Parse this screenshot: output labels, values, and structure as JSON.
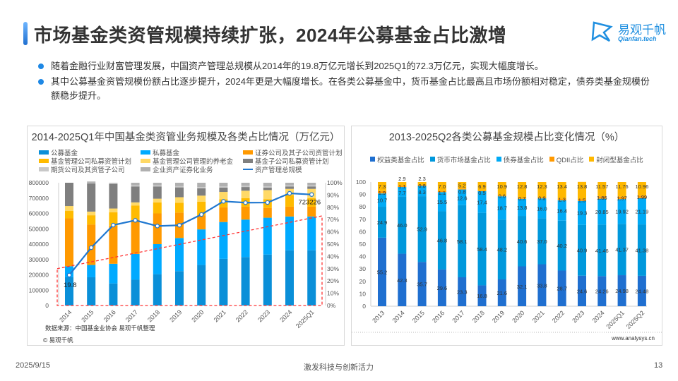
{
  "header": {
    "title": "市场基金类资管规模持续扩张，2024年公募基金占比激增",
    "logo_cn": "易观千帆",
    "logo_en": "Qianfan.tech"
  },
  "bullets": [
    "随着金融行业财富管理发展，中国资产管理总规模从2014年的19.8万亿元增长到2025Q1的72.3万亿元，实现大幅度增长。",
    "其中公募基金资管规模份额占比逐步提升，2024年更是大幅度增长。在各类公募基金中，货币基金占比最高且市场份额相对稳定，债券类基金规模份额稳步提升。"
  ],
  "left_panel": {
    "source": "数据来源：中国基金业协会 易观千帆整理",
    "copyright": "© 易观千帆"
  },
  "right_panel": {
    "source": "www.analysys.cn"
  },
  "footer": {
    "date": "2025/9/15",
    "slogan": "激发科技与创新活力",
    "page": "13"
  },
  "chart_data": [
    {
      "type": "bar",
      "stacked": true,
      "title": "2014-2025Q1年中国基金类资管业务规模及各类占比情况（万亿元）",
      "categories": [
        "2014",
        "2015",
        "2016",
        "2017",
        "2018",
        "2019",
        "2020",
        "2021",
        "2022",
        "2023",
        "2024",
        "2025Q1"
      ],
      "yleft_ticks": [
        "0",
        "100000",
        "200000",
        "300000",
        "400000",
        "500000",
        "600000",
        "700000",
        "800000"
      ],
      "ylim_left": [
        0,
        800000
      ],
      "yright_ticks": [
        "0%",
        "10%",
        "20%",
        "30%",
        "40%",
        "50%",
        "60%",
        "70%",
        "80%",
        "90%",
        "100%"
      ],
      "ylim_right": [
        0,
        100
      ],
      "series": [
        {
          "name": "公募基金",
          "color": "#0a8fd8",
          "values": [
            23,
            23,
            18,
            21,
            25.5,
            28,
            33,
            38,
            39.5,
            41.5,
            45,
            45
          ]
        },
        {
          "name": "私募基金",
          "color": "#00aaff",
          "values": [
            9,
            10,
            16,
            21,
            24.5,
            27,
            29,
            30,
            30.5,
            30,
            27.5,
            27.5
          ]
        },
        {
          "name": "证券公司及其子公司资管计划",
          "color": "#ff9900",
          "values": [
            39,
            33,
            31,
            28,
            25,
            20.7,
            11.5,
            12,
            10.5,
            8,
            8,
            8
          ]
        },
        {
          "name": "基金管理公司私募资管计划",
          "color": "#ffbb00",
          "values": [
            6,
            7.5,
            11,
            11.5,
            9,
            8,
            11,
            6.5,
            7,
            7,
            9.5,
            7
          ]
        },
        {
          "name": "基金管理公司管理的养老金",
          "color": "#ffd966",
          "values": [
            4,
            3,
            3,
            2.5,
            3,
            4.5,
            5,
            6,
            6,
            7.5,
            5,
            7.5
          ]
        },
        {
          "name": "基金子公司私募资管计划",
          "color": "#7f7f7f",
          "values": [
            19,
            23,
            20,
            13,
            10,
            8,
            6,
            3.5,
            3,
            2,
            2,
            2
          ]
        },
        {
          "name": "期货公司及其资管子公司",
          "color": "#c8c8c8",
          "values": [
            0,
            0.5,
            0.5,
            1,
            1,
            1,
            1,
            1,
            1,
            1,
            1,
            1
          ]
        },
        {
          "name": "企业资产证券化业务",
          "color": "#b0b0b0",
          "values": [
            0,
            1,
            0.5,
            2,
            2,
            2.8,
            3.5,
            3,
            2.5,
            3,
            2,
            2
          ]
        }
      ],
      "line": {
        "name": "资产管理总规模",
        "color": "#1f77d0",
        "values": [
          198000,
          377000,
          524000,
          555000,
          518000,
          523000,
          593000,
          679000,
          670000,
          671000,
          731000,
          723226
        ]
      },
      "annotations": [
        "19.8",
        "723226"
      ]
    },
    {
      "type": "bar",
      "stacked": true,
      "title": "2013-2025Q2各类公募基金规模占比变化情况（%）",
      "categories": [
        "2013",
        "2014",
        "2015",
        "2016",
        "2017",
        "2018",
        "2019",
        "2020",
        "2021",
        "2022",
        "2023",
        "2024",
        "2025Q1",
        "2025Q2"
      ],
      "y_ticks": [
        "0",
        "10",
        "20",
        "30",
        "40",
        "50",
        "60",
        "70",
        "80",
        "90",
        "100"
      ],
      "ylim": [
        0,
        100
      ],
      "legend": "top",
      "series": [
        {
          "name": "权益类基金占比",
          "color": "#1f6fd0",
          "values": [
            55.2,
            42.3,
            35.7,
            29.6,
            23.3,
            16.8,
            21.6,
            32.1,
            33.8,
            28.7,
            24.6,
            24.26,
            24.98,
            24.48
          ]
        },
        {
          "name": "货币市场基金占比",
          "color": "#0098dc",
          "values": [
            24.9,
            46.0,
            52.9,
            46.8,
            58.1,
            58.4,
            48.2,
            40.6,
            37.0,
            40.2,
            40.9,
            41.46,
            41.37,
            41.38
          ]
        },
        {
          "name": "债券基金占比",
          "color": "#00aaf5",
          "values": [
            10.7,
            7.7,
            8.3,
            15.5,
            12.6,
            17.4,
            18.7,
            13.8,
            16.0,
            16.4,
            19.3,
            20.85,
            19.92,
            21.19
          ]
        },
        {
          "name": "QDII占比",
          "color": "#ff9900",
          "values": [
            1.9,
            1.1,
            0.8,
            1.1,
            0.8,
            0.5,
            0.6,
            0.7,
            0.9,
            1.3,
            1.5,
            1.86,
            1.97,
            1.99
          ]
        },
        {
          "name": "封闭型基金占比",
          "color": "#ffb800",
          "values": [
            7.3,
            2.9,
            2.3,
            7.0,
            5.2,
            6.9,
            10.9,
            12.8,
            12.3,
            13.4,
            13.8,
            11.57,
            11.76,
            10.96
          ]
        }
      ],
      "labels": [
        [
          "55.2",
          "42.3",
          "35.7",
          "29.6",
          "23.3",
          "16.8",
          "21.6",
          "32.1",
          "33.8",
          "28.7",
          "24.6",
          "24.26",
          "24.98",
          "24.48"
        ],
        [
          "24.9",
          "46.0",
          "52.9",
          "46.8",
          "58.1",
          "58.4",
          "48.2",
          "40.6",
          "37.0",
          "40.2",
          "40.9",
          "41.46",
          "41.37",
          "41.38"
        ],
        [
          "10.7",
          "7.7",
          "8.3",
          "15.5",
          "12.6",
          "17.4",
          "18.7",
          "13.8",
          "16.0",
          "16.4",
          "19.3",
          "20.85",
          "19.92",
          "21.19"
        ],
        [
          "1.9",
          "1.1",
          "0.8",
          "1.1",
          "0.8",
          "0.5",
          "0.6",
          "0.7",
          "0.9",
          "1.3",
          "1.5",
          "1.86",
          "1.97",
          "1.99"
        ],
        [
          "7.3",
          "2.9",
          "2.3",
          "7.0",
          "5.2",
          "6.9",
          "10.9",
          "12.8",
          "12.3",
          "13.4",
          "13.8",
          "11.57",
          "11.76",
          "10.96"
        ]
      ]
    }
  ]
}
